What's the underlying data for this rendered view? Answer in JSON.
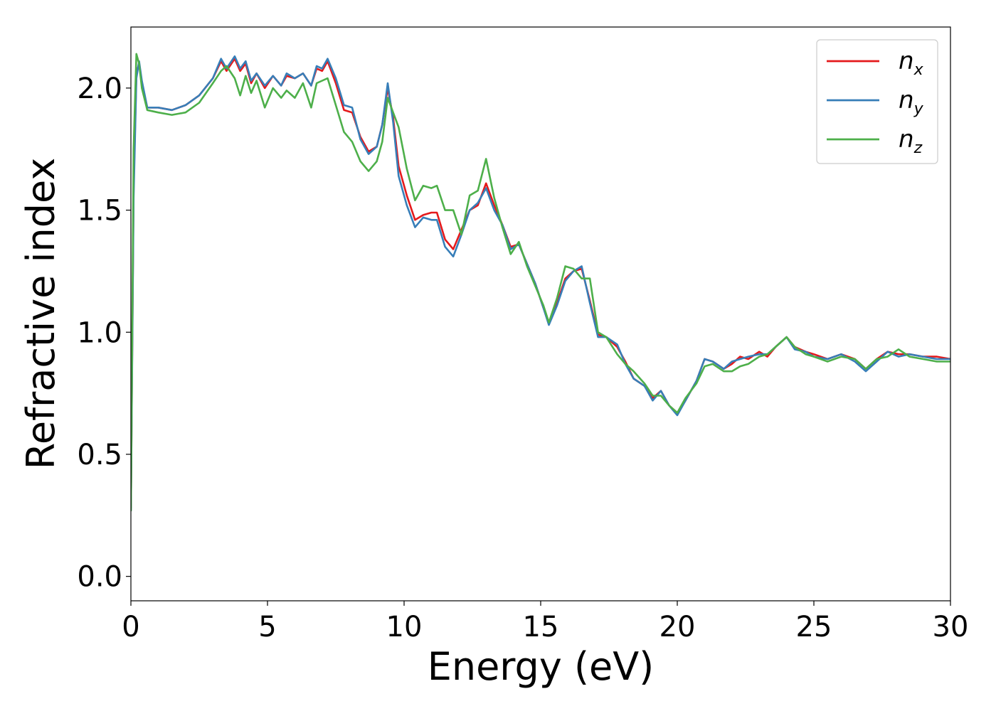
{
  "chart_data": {
    "type": "line",
    "xlabel": "Energy (eV)",
    "ylabel": "Refractive index",
    "xlim": [
      0,
      30
    ],
    "ylim": [
      -0.1,
      2.25
    ],
    "xticks": [
      0,
      5,
      10,
      15,
      20,
      25,
      30
    ],
    "xtick_labels": [
      "0",
      "5",
      "10",
      "15",
      "20",
      "25",
      "30"
    ],
    "yticks": [
      0.0,
      0.5,
      1.0,
      1.5,
      2.0
    ],
    "ytick_labels": [
      "0.0",
      "0.5",
      "1.0",
      "1.5",
      "2.0"
    ],
    "grid": false,
    "legend_position": "top-right",
    "series": [
      {
        "name": "n_x",
        "label_main": "n",
        "label_sub": "x",
        "color": "#e41a1c",
        "points": [
          [
            0,
            0.28
          ],
          [
            0.1,
            1.6
          ],
          [
            0.2,
            2.06
          ],
          [
            0.3,
            2.1
          ],
          [
            0.4,
            2.02
          ],
          [
            0.6,
            1.92
          ],
          [
            1.0,
            1.92
          ],
          [
            1.5,
            1.91
          ],
          [
            2.0,
            1.93
          ],
          [
            2.5,
            1.97
          ],
          [
            3.0,
            2.04
          ],
          [
            3.3,
            2.11
          ],
          [
            3.5,
            2.07
          ],
          [
            3.8,
            2.12
          ],
          [
            4.0,
            2.07
          ],
          [
            4.2,
            2.1
          ],
          [
            4.4,
            2.02
          ],
          [
            4.6,
            2.06
          ],
          [
            4.9,
            2.0
          ],
          [
            5.2,
            2.05
          ],
          [
            5.5,
            2.01
          ],
          [
            5.7,
            2.05
          ],
          [
            6.0,
            2.04
          ],
          [
            6.3,
            2.06
          ],
          [
            6.6,
            2.01
          ],
          [
            6.8,
            2.08
          ],
          [
            7.0,
            2.07
          ],
          [
            7.2,
            2.11
          ],
          [
            7.5,
            2.02
          ],
          [
            7.8,
            1.91
          ],
          [
            8.1,
            1.9
          ],
          [
            8.4,
            1.8
          ],
          [
            8.7,
            1.74
          ],
          [
            9.0,
            1.76
          ],
          [
            9.2,
            1.85
          ],
          [
            9.4,
            2.0
          ],
          [
            9.6,
            1.88
          ],
          [
            9.8,
            1.68
          ],
          [
            10.1,
            1.56
          ],
          [
            10.4,
            1.46
          ],
          [
            10.7,
            1.48
          ],
          [
            11.0,
            1.49
          ],
          [
            11.2,
            1.49
          ],
          [
            11.5,
            1.38
          ],
          [
            11.8,
            1.34
          ],
          [
            12.1,
            1.42
          ],
          [
            12.4,
            1.5
          ],
          [
            12.7,
            1.52
          ],
          [
            13.0,
            1.61
          ],
          [
            13.3,
            1.52
          ],
          [
            13.6,
            1.44
          ],
          [
            13.9,
            1.35
          ],
          [
            14.2,
            1.36
          ],
          [
            14.5,
            1.28
          ],
          [
            14.8,
            1.2
          ],
          [
            15.1,
            1.1
          ],
          [
            15.3,
            1.04
          ],
          [
            15.6,
            1.12
          ],
          [
            15.9,
            1.22
          ],
          [
            16.2,
            1.25
          ],
          [
            16.5,
            1.26
          ],
          [
            16.8,
            1.13
          ],
          [
            17.1,
            0.99
          ],
          [
            17.4,
            0.98
          ],
          [
            17.8,
            0.94
          ],
          [
            18.1,
            0.88
          ],
          [
            18.4,
            0.81
          ],
          [
            18.8,
            0.78
          ],
          [
            19.1,
            0.73
          ],
          [
            19.4,
            0.76
          ],
          [
            19.7,
            0.7
          ],
          [
            20.0,
            0.67
          ],
          [
            20.3,
            0.72
          ],
          [
            20.7,
            0.8
          ],
          [
            21.0,
            0.89
          ],
          [
            21.3,
            0.88
          ],
          [
            21.7,
            0.85
          ],
          [
            22.0,
            0.87
          ],
          [
            22.3,
            0.9
          ],
          [
            22.6,
            0.89
          ],
          [
            23.0,
            0.92
          ],
          [
            23.3,
            0.9
          ],
          [
            23.6,
            0.94
          ],
          [
            24.0,
            0.98
          ],
          [
            24.3,
            0.94
          ],
          [
            24.7,
            0.92
          ],
          [
            25.0,
            0.91
          ],
          [
            25.5,
            0.89
          ],
          [
            26.0,
            0.91
          ],
          [
            26.5,
            0.89
          ],
          [
            26.9,
            0.85
          ],
          [
            27.3,
            0.89
          ],
          [
            27.7,
            0.92
          ],
          [
            28.1,
            0.91
          ],
          [
            28.5,
            0.91
          ],
          [
            29.0,
            0.9
          ],
          [
            29.5,
            0.9
          ],
          [
            30.0,
            0.89
          ]
        ]
      },
      {
        "name": "n_y",
        "label_main": "n",
        "label_sub": "y",
        "color": "#377eb8",
        "points": [
          [
            0,
            0.27
          ],
          [
            0.1,
            1.55
          ],
          [
            0.2,
            2.04
          ],
          [
            0.3,
            2.11
          ],
          [
            0.4,
            2.03
          ],
          [
            0.6,
            1.92
          ],
          [
            1.0,
            1.92
          ],
          [
            1.5,
            1.91
          ],
          [
            2.0,
            1.93
          ],
          [
            2.5,
            1.97
          ],
          [
            3.0,
            2.04
          ],
          [
            3.3,
            2.12
          ],
          [
            3.5,
            2.08
          ],
          [
            3.8,
            2.13
          ],
          [
            4.0,
            2.08
          ],
          [
            4.2,
            2.11
          ],
          [
            4.4,
            2.03
          ],
          [
            4.6,
            2.06
          ],
          [
            4.9,
            2.01
          ],
          [
            5.2,
            2.05
          ],
          [
            5.5,
            2.01
          ],
          [
            5.7,
            2.06
          ],
          [
            6.0,
            2.04
          ],
          [
            6.3,
            2.06
          ],
          [
            6.6,
            2.01
          ],
          [
            6.8,
            2.09
          ],
          [
            7.0,
            2.08
          ],
          [
            7.2,
            2.12
          ],
          [
            7.5,
            2.04
          ],
          [
            7.8,
            1.93
          ],
          [
            8.1,
            1.92
          ],
          [
            8.4,
            1.79
          ],
          [
            8.7,
            1.73
          ],
          [
            9.0,
            1.76
          ],
          [
            9.2,
            1.85
          ],
          [
            9.4,
            2.02
          ],
          [
            9.6,
            1.86
          ],
          [
            9.8,
            1.64
          ],
          [
            10.1,
            1.52
          ],
          [
            10.4,
            1.43
          ],
          [
            10.7,
            1.47
          ],
          [
            11.0,
            1.46
          ],
          [
            11.2,
            1.46
          ],
          [
            11.5,
            1.35
          ],
          [
            11.8,
            1.31
          ],
          [
            12.1,
            1.4
          ],
          [
            12.4,
            1.5
          ],
          [
            12.7,
            1.53
          ],
          [
            13.0,
            1.59
          ],
          [
            13.3,
            1.5
          ],
          [
            13.6,
            1.44
          ],
          [
            13.9,
            1.34
          ],
          [
            14.2,
            1.36
          ],
          [
            14.5,
            1.28
          ],
          [
            14.8,
            1.2
          ],
          [
            15.1,
            1.1
          ],
          [
            15.3,
            1.03
          ],
          [
            15.6,
            1.11
          ],
          [
            15.9,
            1.21
          ],
          [
            16.2,
            1.25
          ],
          [
            16.5,
            1.27
          ],
          [
            16.8,
            1.12
          ],
          [
            17.1,
            0.98
          ],
          [
            17.4,
            0.98
          ],
          [
            17.8,
            0.95
          ],
          [
            18.1,
            0.87
          ],
          [
            18.4,
            0.81
          ],
          [
            18.8,
            0.78
          ],
          [
            19.1,
            0.72
          ],
          [
            19.4,
            0.76
          ],
          [
            19.7,
            0.7
          ],
          [
            20.0,
            0.66
          ],
          [
            20.3,
            0.72
          ],
          [
            20.7,
            0.8
          ],
          [
            21.0,
            0.89
          ],
          [
            21.3,
            0.88
          ],
          [
            21.7,
            0.85
          ],
          [
            22.0,
            0.88
          ],
          [
            22.3,
            0.89
          ],
          [
            22.6,
            0.9
          ],
          [
            23.0,
            0.91
          ],
          [
            23.3,
            0.91
          ],
          [
            23.6,
            0.94
          ],
          [
            24.0,
            0.98
          ],
          [
            24.3,
            0.93
          ],
          [
            24.7,
            0.92
          ],
          [
            25.0,
            0.9
          ],
          [
            25.5,
            0.89
          ],
          [
            26.0,
            0.91
          ],
          [
            26.5,
            0.88
          ],
          [
            26.9,
            0.84
          ],
          [
            27.3,
            0.88
          ],
          [
            27.7,
            0.92
          ],
          [
            28.1,
            0.9
          ],
          [
            28.5,
            0.91
          ],
          [
            29.0,
            0.9
          ],
          [
            29.5,
            0.89
          ],
          [
            30.0,
            0.89
          ]
        ]
      },
      {
        "name": "n_z",
        "label_main": "n",
        "label_sub": "z",
        "color": "#4daf4a",
        "points": [
          [
            0,
            0.27
          ],
          [
            0.1,
            1.75
          ],
          [
            0.2,
            2.14
          ],
          [
            0.3,
            2.1
          ],
          [
            0.4,
            2.0
          ],
          [
            0.6,
            1.91
          ],
          [
            1.0,
            1.9
          ],
          [
            1.5,
            1.89
          ],
          [
            2.0,
            1.9
          ],
          [
            2.5,
            1.94
          ],
          [
            3.0,
            2.02
          ],
          [
            3.3,
            2.07
          ],
          [
            3.5,
            2.09
          ],
          [
            3.8,
            2.04
          ],
          [
            4.0,
            1.97
          ],
          [
            4.2,
            2.05
          ],
          [
            4.4,
            1.98
          ],
          [
            4.6,
            2.03
          ],
          [
            4.9,
            1.92
          ],
          [
            5.2,
            2.0
          ],
          [
            5.5,
            1.96
          ],
          [
            5.7,
            1.99
          ],
          [
            6.0,
            1.96
          ],
          [
            6.3,
            2.02
          ],
          [
            6.6,
            1.92
          ],
          [
            6.8,
            2.02
          ],
          [
            7.0,
            2.03
          ],
          [
            7.2,
            2.04
          ],
          [
            7.5,
            1.93
          ],
          [
            7.8,
            1.82
          ],
          [
            8.1,
            1.78
          ],
          [
            8.4,
            1.7
          ],
          [
            8.7,
            1.66
          ],
          [
            9.0,
            1.7
          ],
          [
            9.2,
            1.78
          ],
          [
            9.4,
            1.96
          ],
          [
            9.6,
            1.9
          ],
          [
            9.8,
            1.84
          ],
          [
            10.1,
            1.67
          ],
          [
            10.4,
            1.54
          ],
          [
            10.7,
            1.6
          ],
          [
            11.0,
            1.59
          ],
          [
            11.2,
            1.6
          ],
          [
            11.5,
            1.5
          ],
          [
            11.8,
            1.5
          ],
          [
            12.1,
            1.4
          ],
          [
            12.4,
            1.56
          ],
          [
            12.7,
            1.58
          ],
          [
            13.0,
            1.71
          ],
          [
            13.3,
            1.55
          ],
          [
            13.6,
            1.43
          ],
          [
            13.9,
            1.32
          ],
          [
            14.2,
            1.37
          ],
          [
            14.5,
            1.27
          ],
          [
            14.8,
            1.19
          ],
          [
            15.1,
            1.11
          ],
          [
            15.3,
            1.04
          ],
          [
            15.6,
            1.14
          ],
          [
            15.9,
            1.27
          ],
          [
            16.2,
            1.26
          ],
          [
            16.5,
            1.22
          ],
          [
            16.8,
            1.22
          ],
          [
            17.1,
            1.0
          ],
          [
            17.4,
            0.98
          ],
          [
            17.8,
            0.91
          ],
          [
            18.1,
            0.87
          ],
          [
            18.4,
            0.84
          ],
          [
            18.8,
            0.79
          ],
          [
            19.1,
            0.74
          ],
          [
            19.4,
            0.74
          ],
          [
            19.7,
            0.7
          ],
          [
            20.0,
            0.67
          ],
          [
            20.3,
            0.73
          ],
          [
            20.7,
            0.79
          ],
          [
            21.0,
            0.86
          ],
          [
            21.3,
            0.87
          ],
          [
            21.7,
            0.84
          ],
          [
            22.0,
            0.84
          ],
          [
            22.3,
            0.86
          ],
          [
            22.6,
            0.87
          ],
          [
            23.0,
            0.9
          ],
          [
            23.3,
            0.91
          ],
          [
            23.6,
            0.94
          ],
          [
            24.0,
            0.98
          ],
          [
            24.3,
            0.94
          ],
          [
            24.7,
            0.91
          ],
          [
            25.0,
            0.9
          ],
          [
            25.5,
            0.88
          ],
          [
            26.0,
            0.9
          ],
          [
            26.5,
            0.89
          ],
          [
            26.9,
            0.85
          ],
          [
            27.3,
            0.89
          ],
          [
            27.7,
            0.9
          ],
          [
            28.1,
            0.93
          ],
          [
            28.5,
            0.9
          ],
          [
            29.0,
            0.89
          ],
          [
            29.5,
            0.88
          ],
          [
            30.0,
            0.88
          ]
        ]
      }
    ]
  }
}
